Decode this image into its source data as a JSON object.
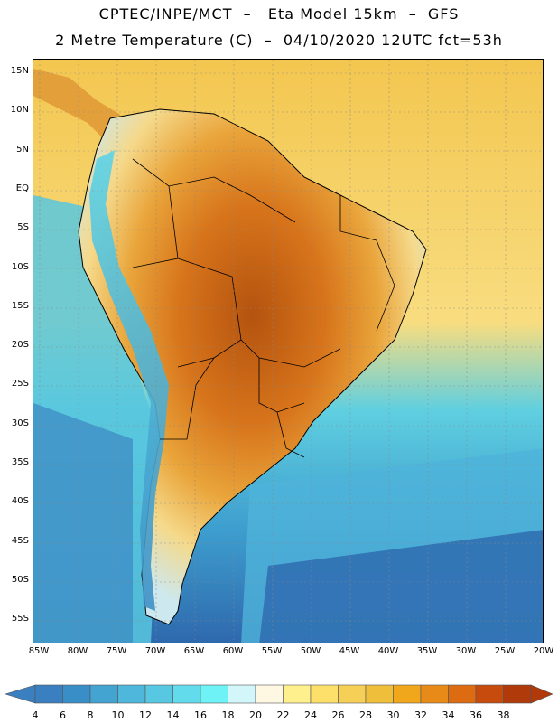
{
  "header": {
    "title_line1": "CPTEC/INPE/MCT  –   Eta Model 15km  –  GFS",
    "title_line2": "2 Metre Temperature (C)  –  04/10/2020 12UTC fct=53h"
  },
  "map": {
    "lat_labels": [
      "15N",
      "10N",
      "5N",
      "EQ",
      "5S",
      "10S",
      "15S",
      "20S",
      "25S",
      "30S",
      "35S",
      "40S",
      "45S",
      "50S",
      "55S"
    ],
    "lon_labels": [
      "85W",
      "80W",
      "75W",
      "70W",
      "65W",
      "60W",
      "55W",
      "50W",
      "45W",
      "40W",
      "35W",
      "30W",
      "25W",
      "20W"
    ],
    "ocean_color": "#f0c550",
    "land_hot_color": "#b85a10"
  },
  "colorbar": {
    "labels": [
      "4",
      "6",
      "8",
      "10",
      "12",
      "14",
      "16",
      "18",
      "20",
      "22",
      "24",
      "26",
      "28",
      "30",
      "32",
      "34",
      "36",
      "38"
    ],
    "colors": [
      "#3a7fc0",
      "#3a8ec7",
      "#43a3d1",
      "#4fb7dc",
      "#58c8e2",
      "#62dcec",
      "#6ef2f5",
      "#d2f6fa",
      "#fef7e2",
      "#fef08c",
      "#fce06a",
      "#f6cf56",
      "#efbf3b",
      "#f0a71c",
      "#e88a18",
      "#dc6b12",
      "#c84b0e",
      "#b03a0a"
    ]
  }
}
